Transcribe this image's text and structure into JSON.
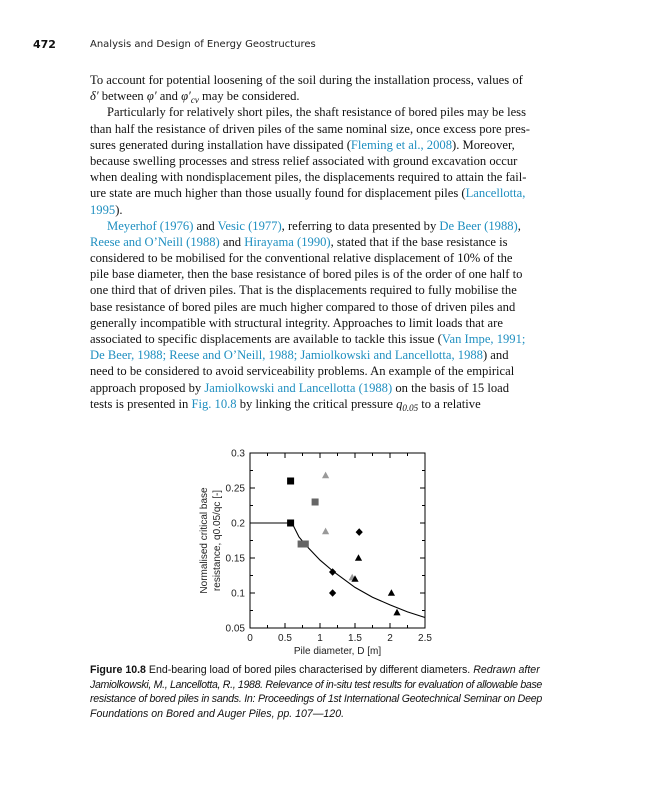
{
  "header": {
    "page_number": "472",
    "running_title": "Analysis and Design of Energy Geostructures"
  },
  "body": {
    "lines": [
      [
        {
          "t": "To account for potential loosening of the soil during the installation process, values of"
        }
      ],
      [
        {
          "t": "δ′",
          "s": "it"
        },
        {
          "t": " between "
        },
        {
          "t": "φ′",
          "s": "it"
        },
        {
          "t": " and "
        },
        {
          "t": "φ′",
          "s": "it"
        },
        {
          "t": "cv",
          "s": "sub"
        },
        {
          "t": " may be considered."
        }
      ],
      [
        {
          "t": "Particularly for relatively short piles, the shaft resistance of bored piles may be less"
        }
      ],
      [
        {
          "t": "than half the resistance of driven piles of the same nominal size, once excess pore pres-"
        }
      ],
      [
        {
          "t": "sures generated during installation have dissipated ("
        },
        {
          "t": "Fleming et al., 2008",
          "s": "link"
        },
        {
          "t": "). Moreover,"
        }
      ],
      [
        {
          "t": "because swelling processes and stress relief associated with ground excavation occur"
        }
      ],
      [
        {
          "t": "when dealing with nondisplacement piles, the displacements required to attain the fail-"
        }
      ],
      [
        {
          "t": "ure state are much higher than those usually found for displacement piles ("
        },
        {
          "t": "Lancellotta,",
          "s": "link"
        }
      ],
      [
        {
          "t": "1995",
          "s": "link"
        },
        {
          "t": ")."
        }
      ],
      [
        {
          "t": "Meyerhof (1976)",
          "s": "link"
        },
        {
          "t": " and "
        },
        {
          "t": "Vesic (1977)",
          "s": "link"
        },
        {
          "t": ", referring to data presented by "
        },
        {
          "t": "De Beer (1988)",
          "s": "link"
        },
        {
          "t": ","
        }
      ],
      [
        {
          "t": "Reese and O’Neill (1988)",
          "s": "link"
        },
        {
          "t": " and "
        },
        {
          "t": "Hirayama (1990)",
          "s": "link"
        },
        {
          "t": ", stated that if the base resistance is"
        }
      ],
      [
        {
          "t": "considered to be mobilised for the conventional relative displacement of 10% of the"
        }
      ],
      [
        {
          "t": "pile base diameter, then the base resistance of bored piles is of the order of one half to"
        }
      ],
      [
        {
          "t": "one third that of driven piles. That is the displacements required to fully mobilise the"
        }
      ],
      [
        {
          "t": "base resistance of bored piles are much higher compared to those of driven piles and"
        }
      ],
      [
        {
          "t": "generally incompatible with structural integrity. Approaches to limit loads that are"
        }
      ],
      [
        {
          "t": "associated to specific displacements are available to tackle this issue ("
        },
        {
          "t": "Van Impe, 1991;",
          "s": "link"
        }
      ],
      [
        {
          "t": "De Beer, 1988; Reese and O’Neill, 1988; Jamiolkowski and Lancellotta, 1988",
          "s": "link"
        },
        {
          "t": ") and"
        }
      ],
      [
        {
          "t": "need to be considered to avoid serviceability problems. An example of the empirical"
        }
      ],
      [
        {
          "t": "approach proposed by "
        },
        {
          "t": "Jamiolkowski and Lancellotta (1988)",
          "s": "link"
        },
        {
          "t": " on the basis of 15 load"
        }
      ],
      [
        {
          "t": "tests is presented in "
        },
        {
          "t": "Fig. 10.8",
          "s": "link"
        },
        {
          "t": " by linking the critical pressure "
        },
        {
          "t": "q",
          "s": "it"
        },
        {
          "t": "0.05",
          "s": "sub"
        },
        {
          "t": " to a relative"
        }
      ]
    ],
    "paragraph_starts": [
      2,
      9
    ],
    "paragraph_ends": [
      1,
      8
    ]
  },
  "caption": {
    "lines": [
      [
        {
          "t": "Figure 10.8",
          "s": "b"
        },
        {
          "t": " End-bearing load of bored piles characterised by different diameters. "
        },
        {
          "t": "Redrawn after",
          "s": "it"
        }
      ],
      [
        {
          "t": "Jamiolkowski, M., Lancellotta, R., 1988. Relevance of in-situ test results for evaluation of allowable base",
          "s": "it"
        }
      ],
      [
        {
          "t": "resistance of bored piles in sands. In: Proceedings of 1st International Geotechnical Seminar on Deep",
          "s": "it"
        }
      ],
      [
        {
          "t": "Foundations on Bored and Auger Piles, pp. 107—120.",
          "s": "it"
        }
      ]
    ]
  },
  "chart_data": {
    "type": "scatter",
    "title": "",
    "xlabel": "Pile diameter, D [m]",
    "ylabel_line1": "Normalised critical base",
    "ylabel_line2": "resistance, q0.05/qc [-]",
    "xlim": [
      0,
      2.5
    ],
    "ylim": [
      0.05,
      0.3
    ],
    "xticks": [
      "0",
      "0.5",
      "1",
      "1.5",
      "2",
      "2.5"
    ],
    "yticks": [
      "0.05",
      "0.1",
      "0.15",
      "0.2",
      "0.25",
      "0.3"
    ],
    "grid": false,
    "series": [
      {
        "marker": "square",
        "color": "#000000",
        "points": [
          [
            0.58,
            0.26
          ],
          [
            0.58,
            0.2
          ]
        ]
      },
      {
        "marker": "square",
        "color": "#666666",
        "points": [
          [
            0.93,
            0.23
          ],
          [
            0.73,
            0.17
          ],
          [
            0.79,
            0.17
          ]
        ]
      },
      {
        "marker": "triangle",
        "color": "#999999",
        "points": [
          [
            1.08,
            0.268
          ],
          [
            1.08,
            0.188
          ],
          [
            1.46,
            0.122
          ]
        ]
      },
      {
        "marker": "diamond",
        "color": "#000000",
        "points": [
          [
            1.56,
            0.187
          ],
          [
            1.18,
            0.13
          ],
          [
            1.18,
            0.1
          ]
        ]
      },
      {
        "marker": "triangle",
        "color": "#000000",
        "points": [
          [
            1.55,
            0.15
          ],
          [
            1.5,
            0.12
          ],
          [
            2.02,
            0.1
          ],
          [
            2.1,
            0.072
          ]
        ]
      }
    ],
    "curve": [
      [
        0,
        0.2
      ],
      [
        0.6,
        0.2
      ],
      [
        0.7,
        0.18
      ],
      [
        0.8,
        0.168
      ],
      [
        1.0,
        0.147
      ],
      [
        1.2,
        0.13
      ],
      [
        1.5,
        0.108
      ],
      [
        1.75,
        0.094
      ],
      [
        2.0,
        0.083
      ],
      [
        2.25,
        0.073
      ],
      [
        2.5,
        0.065
      ]
    ]
  }
}
